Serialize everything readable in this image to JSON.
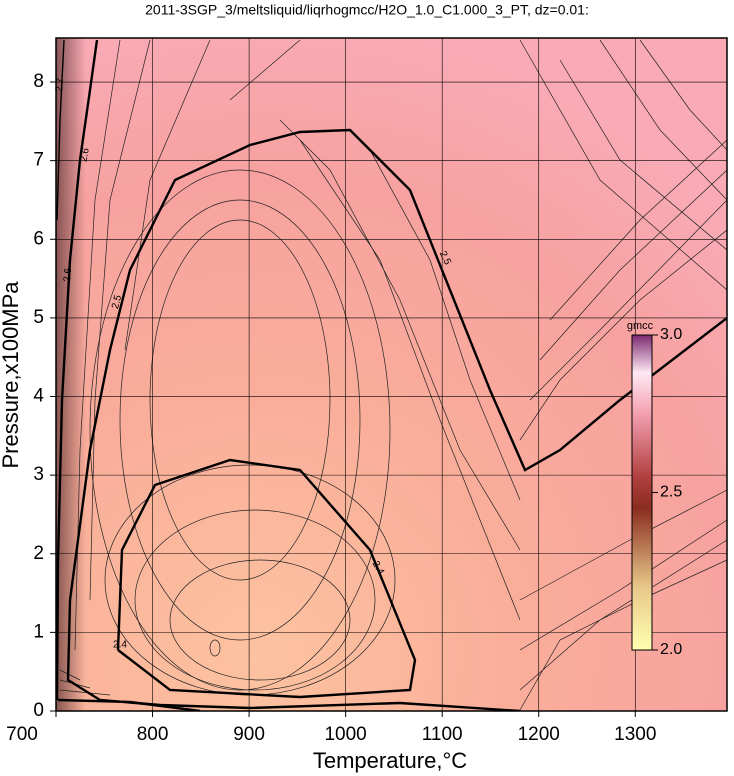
{
  "chart_data": {
    "type": "contour",
    "title": "2011-3SGP_3/meltsliquid/liqrhogmcc/H2O_1.0_C1.000_3_PT, dz=0.01:",
    "x_label": "Temperature,°C",
    "y_label": "Pressure,x100MPa",
    "xlim": [
      700,
      1395
    ],
    "xticks": [
      700,
      800,
      900,
      1000,
      1100,
      1200,
      1300
    ],
    "ylim": [
      0,
      8.56
    ],
    "yticks": [
      0,
      1,
      2,
      3,
      4,
      5,
      6,
      7,
      8
    ],
    "grid": true,
    "levels": [
      2.4,
      2.5,
      2.6,
      2.7
    ],
    "colorbar": {
      "label": "gmcc",
      "lim": [
        2.0,
        3.0
      ],
      "ticks": [
        2.0,
        2.5,
        3.0
      ]
    }
  }
}
